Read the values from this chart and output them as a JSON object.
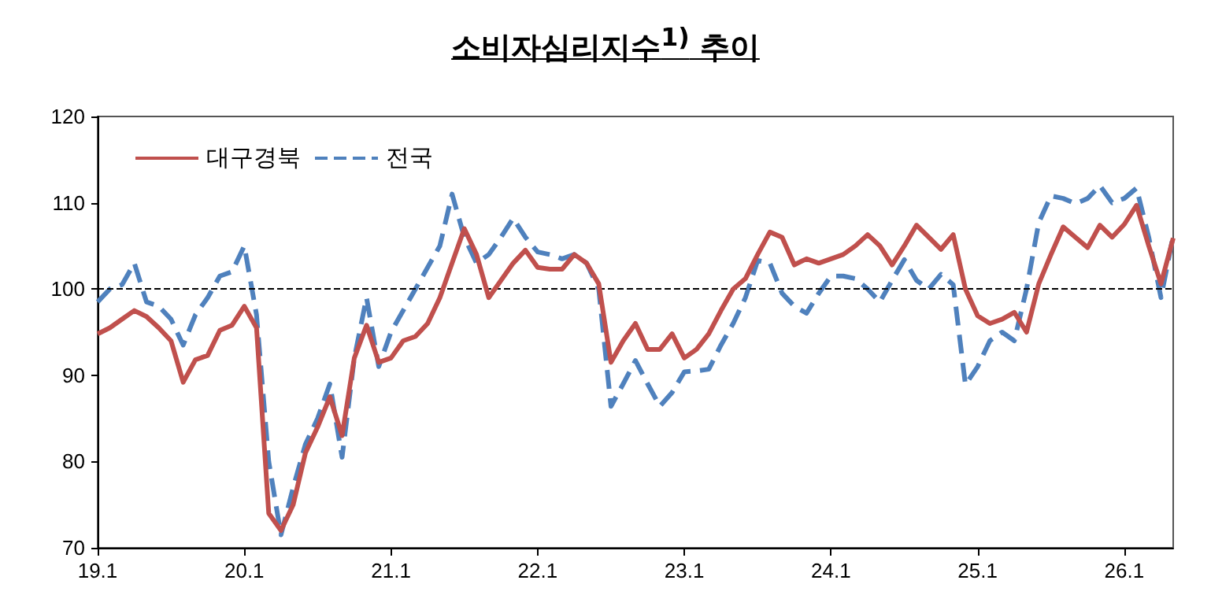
{
  "chart_data": {
    "type": "line",
    "title": "소비자심리지수$^{1)}$ 추이",
    "categories": [
      "19.1",
      null,
      null,
      null,
      null,
      null,
      null,
      null,
      null,
      null,
      null,
      null,
      "20.1",
      null,
      null,
      null,
      null,
      null,
      null,
      null,
      null,
      null,
      null,
      null,
      "21.1",
      null,
      null,
      null,
      null,
      null,
      null,
      null,
      null,
      null,
      null,
      null,
      "22.1",
      null,
      null,
      null,
      null,
      null,
      null,
      null,
      null,
      null,
      null,
      null,
      "23.1",
      null,
      null,
      null,
      null,
      null,
      null,
      null,
      null,
      null,
      null,
      null,
      "24.1",
      null,
      null,
      null,
      null,
      null,
      null,
      null,
      null,
      null,
      null,
      null,
      "25.1",
      null,
      null,
      null,
      null,
      null,
      null,
      null,
      null,
      null,
      null,
      null,
      "26.1",
      null,
      null,
      null,
      null
    ],
    "series": [
      {
        "name": "대구경북",
        "color": "#c0504d",
        "line_style": "solid",
        "values": [
          94.8,
          95.5,
          96.5,
          97.5,
          96.8,
          95.5,
          94,
          89.2,
          91.8,
          92.3,
          95.2,
          95.8,
          98,
          95.5,
          74,
          72,
          75,
          81,
          84,
          87.5,
          83,
          92,
          95.8,
          91.5,
          92,
          94,
          94.5,
          96,
          99,
          103,
          107,
          104,
          99,
          101,
          103,
          104.5,
          102.5,
          102.3,
          102.3,
          104,
          103,
          100.6,
          91.5,
          94,
          96,
          93,
          93,
          94.8,
          92,
          93,
          94.8,
          97.5,
          100,
          101.2,
          104,
          106.6,
          106,
          102.8,
          103.5,
          103,
          103.5,
          104,
          105,
          106.3,
          105,
          102.8,
          105,
          107.4,
          106,
          104.6,
          106.3,
          100,
          96.9,
          96,
          96.5,
          97.3,
          95,
          100.6,
          104,
          107.2,
          106,
          104.8,
          107.4,
          106,
          107.5,
          109.7,
          105,
          100.6,
          105.9
        ]
      },
      {
        "name": "전국",
        "color": "#4f81bd",
        "line_style": "dashed",
        "values": [
          98.5,
          100,
          100.5,
          103,
          98.5,
          98,
          96.5,
          93.5,
          97,
          99,
          101.5,
          102,
          105,
          97,
          80,
          71.5,
          77,
          82,
          85,
          89,
          80.5,
          92,
          99,
          91,
          95,
          97.5,
          100,
          102.5,
          105,
          111,
          106,
          103,
          104,
          106,
          108.2,
          106,
          104.3,
          104,
          103.5,
          104,
          103,
          100,
          86.4,
          89,
          91.7,
          89,
          86.4,
          88,
          90.4,
          90.5,
          90.7,
          93.5,
          96,
          99,
          103.3,
          103,
          99.5,
          98,
          97.2,
          99.5,
          101.5,
          101.5,
          101.2,
          100,
          98.5,
          101,
          103.4,
          101,
          100,
          101.7,
          100.5,
          88.9,
          91,
          94,
          95,
          94,
          100,
          107.7,
          110.8,
          110.5,
          109.9,
          110.5,
          112,
          110,
          110.5,
          111.7,
          106,
          99,
          106.2
        ]
      }
    ],
    "ylim": [
      70,
      120
    ],
    "yticks": [
      70,
      80,
      90,
      100,
      110,
      120
    ],
    "ref_lines": [
      {
        "axis": "y",
        "value": 100,
        "color": "#000000",
        "line_style": "dashed"
      }
    ],
    "grid": false,
    "legend": "top left",
    "marker": "none"
  }
}
